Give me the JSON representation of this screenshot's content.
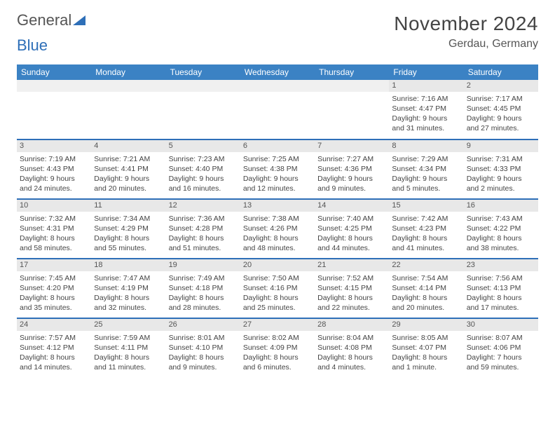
{
  "logo": {
    "text1": "General",
    "text2": "Blue"
  },
  "header": {
    "month": "November 2024",
    "location": "Gerdau, Germany"
  },
  "style": {
    "header_bg": "#3b82c4",
    "header_text": "#ffffff",
    "row_divider": "#2e6fb8",
    "daynum_bg": "#e8e8e8",
    "body_text": "#444444",
    "month_fontsize": 28,
    "location_fontsize": 16,
    "th_fontsize": 12,
    "cell_fontsize": 10.5,
    "page_bg": "#ffffff"
  },
  "daynames": [
    "Sunday",
    "Monday",
    "Tuesday",
    "Wednesday",
    "Thursday",
    "Friday",
    "Saturday"
  ],
  "weeks": [
    [
      null,
      null,
      null,
      null,
      null,
      {
        "n": "1",
        "sunrise": "Sunrise: 7:16 AM",
        "sunset": "Sunset: 4:47 PM",
        "daylight": "Daylight: 9 hours and 31 minutes."
      },
      {
        "n": "2",
        "sunrise": "Sunrise: 7:17 AM",
        "sunset": "Sunset: 4:45 PM",
        "daylight": "Daylight: 9 hours and 27 minutes."
      }
    ],
    [
      {
        "n": "3",
        "sunrise": "Sunrise: 7:19 AM",
        "sunset": "Sunset: 4:43 PM",
        "daylight": "Daylight: 9 hours and 24 minutes."
      },
      {
        "n": "4",
        "sunrise": "Sunrise: 7:21 AM",
        "sunset": "Sunset: 4:41 PM",
        "daylight": "Daylight: 9 hours and 20 minutes."
      },
      {
        "n": "5",
        "sunrise": "Sunrise: 7:23 AM",
        "sunset": "Sunset: 4:40 PM",
        "daylight": "Daylight: 9 hours and 16 minutes."
      },
      {
        "n": "6",
        "sunrise": "Sunrise: 7:25 AM",
        "sunset": "Sunset: 4:38 PM",
        "daylight": "Daylight: 9 hours and 12 minutes."
      },
      {
        "n": "7",
        "sunrise": "Sunrise: 7:27 AM",
        "sunset": "Sunset: 4:36 PM",
        "daylight": "Daylight: 9 hours and 9 minutes."
      },
      {
        "n": "8",
        "sunrise": "Sunrise: 7:29 AM",
        "sunset": "Sunset: 4:34 PM",
        "daylight": "Daylight: 9 hours and 5 minutes."
      },
      {
        "n": "9",
        "sunrise": "Sunrise: 7:31 AM",
        "sunset": "Sunset: 4:33 PM",
        "daylight": "Daylight: 9 hours and 2 minutes."
      }
    ],
    [
      {
        "n": "10",
        "sunrise": "Sunrise: 7:32 AM",
        "sunset": "Sunset: 4:31 PM",
        "daylight": "Daylight: 8 hours and 58 minutes."
      },
      {
        "n": "11",
        "sunrise": "Sunrise: 7:34 AM",
        "sunset": "Sunset: 4:29 PM",
        "daylight": "Daylight: 8 hours and 55 minutes."
      },
      {
        "n": "12",
        "sunrise": "Sunrise: 7:36 AM",
        "sunset": "Sunset: 4:28 PM",
        "daylight": "Daylight: 8 hours and 51 minutes."
      },
      {
        "n": "13",
        "sunrise": "Sunrise: 7:38 AM",
        "sunset": "Sunset: 4:26 PM",
        "daylight": "Daylight: 8 hours and 48 minutes."
      },
      {
        "n": "14",
        "sunrise": "Sunrise: 7:40 AM",
        "sunset": "Sunset: 4:25 PM",
        "daylight": "Daylight: 8 hours and 44 minutes."
      },
      {
        "n": "15",
        "sunrise": "Sunrise: 7:42 AM",
        "sunset": "Sunset: 4:23 PM",
        "daylight": "Daylight: 8 hours and 41 minutes."
      },
      {
        "n": "16",
        "sunrise": "Sunrise: 7:43 AM",
        "sunset": "Sunset: 4:22 PM",
        "daylight": "Daylight: 8 hours and 38 minutes."
      }
    ],
    [
      {
        "n": "17",
        "sunrise": "Sunrise: 7:45 AM",
        "sunset": "Sunset: 4:20 PM",
        "daylight": "Daylight: 8 hours and 35 minutes."
      },
      {
        "n": "18",
        "sunrise": "Sunrise: 7:47 AM",
        "sunset": "Sunset: 4:19 PM",
        "daylight": "Daylight: 8 hours and 32 minutes."
      },
      {
        "n": "19",
        "sunrise": "Sunrise: 7:49 AM",
        "sunset": "Sunset: 4:18 PM",
        "daylight": "Daylight: 8 hours and 28 minutes."
      },
      {
        "n": "20",
        "sunrise": "Sunrise: 7:50 AM",
        "sunset": "Sunset: 4:16 PM",
        "daylight": "Daylight: 8 hours and 25 minutes."
      },
      {
        "n": "21",
        "sunrise": "Sunrise: 7:52 AM",
        "sunset": "Sunset: 4:15 PM",
        "daylight": "Daylight: 8 hours and 22 minutes."
      },
      {
        "n": "22",
        "sunrise": "Sunrise: 7:54 AM",
        "sunset": "Sunset: 4:14 PM",
        "daylight": "Daylight: 8 hours and 20 minutes."
      },
      {
        "n": "23",
        "sunrise": "Sunrise: 7:56 AM",
        "sunset": "Sunset: 4:13 PM",
        "daylight": "Daylight: 8 hours and 17 minutes."
      }
    ],
    [
      {
        "n": "24",
        "sunrise": "Sunrise: 7:57 AM",
        "sunset": "Sunset: 4:12 PM",
        "daylight": "Daylight: 8 hours and 14 minutes."
      },
      {
        "n": "25",
        "sunrise": "Sunrise: 7:59 AM",
        "sunset": "Sunset: 4:11 PM",
        "daylight": "Daylight: 8 hours and 11 minutes."
      },
      {
        "n": "26",
        "sunrise": "Sunrise: 8:01 AM",
        "sunset": "Sunset: 4:10 PM",
        "daylight": "Daylight: 8 hours and 9 minutes."
      },
      {
        "n": "27",
        "sunrise": "Sunrise: 8:02 AM",
        "sunset": "Sunset: 4:09 PM",
        "daylight": "Daylight: 8 hours and 6 minutes."
      },
      {
        "n": "28",
        "sunrise": "Sunrise: 8:04 AM",
        "sunset": "Sunset: 4:08 PM",
        "daylight": "Daylight: 8 hours and 4 minutes."
      },
      {
        "n": "29",
        "sunrise": "Sunrise: 8:05 AM",
        "sunset": "Sunset: 4:07 PM",
        "daylight": "Daylight: 8 hours and 1 minute."
      },
      {
        "n": "30",
        "sunrise": "Sunrise: 8:07 AM",
        "sunset": "Sunset: 4:06 PM",
        "daylight": "Daylight: 7 hours and 59 minutes."
      }
    ]
  ]
}
